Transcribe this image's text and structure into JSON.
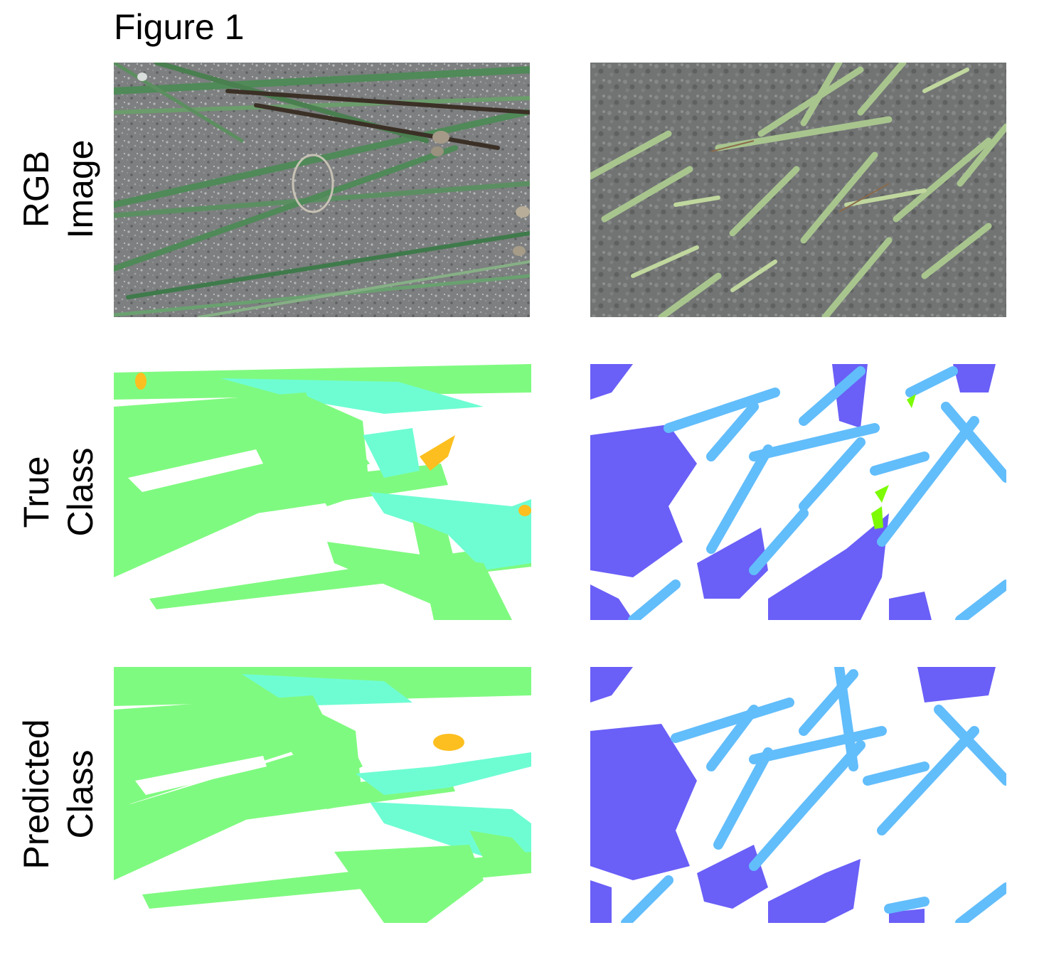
{
  "figure": {
    "title": "Figure 1",
    "rows": [
      {
        "line1": "RGB",
        "line2": "Image"
      },
      {
        "line1": "True",
        "line2": "Class"
      },
      {
        "line1": "Predicted",
        "line2": "Class"
      }
    ]
  },
  "colors": {
    "grass": "#7ffa80",
    "grass_alt": "#6efdd3",
    "stone": "#fcbf1f",
    "plant_light": "#62bdfb",
    "plant_dark": "#6a5ff7",
    "plant_green": "#7cfb04",
    "soil_gray": "#8a8c8d",
    "soil_dark": "#6e7070",
    "blade_green": "#4f8a58",
    "succulent": "#a8c58e",
    "background": "#ffffff"
  }
}
